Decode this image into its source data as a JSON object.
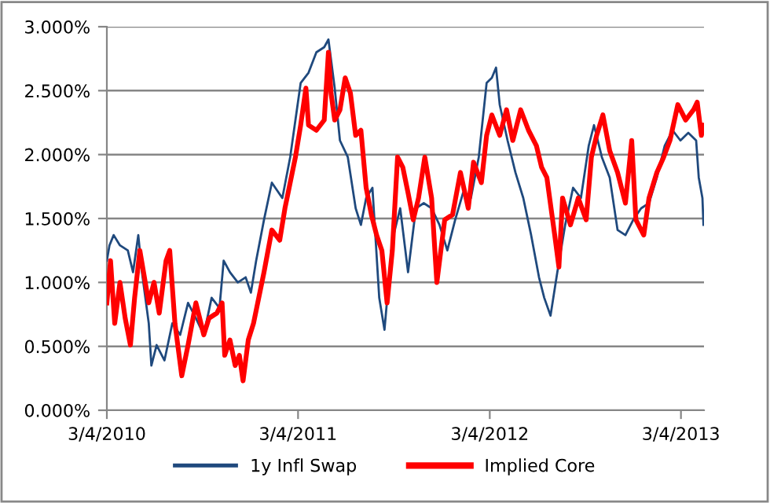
{
  "chart_data": {
    "type": "line",
    "x": [
      "2010-03-04",
      "2010-03-09",
      "2010-03-17",
      "2010-03-29",
      "2010-04-13",
      "2010-04-23",
      "2010-05-03",
      "2010-05-10",
      "2010-05-23",
      "2010-05-28",
      "2010-06-07",
      "2010-06-22",
      "2010-07-07",
      "2010-07-22",
      "2010-08-06",
      "2010-08-21",
      "2010-09-05",
      "2010-09-20",
      "2010-10-05",
      "2010-10-13",
      "2010-10-25",
      "2010-11-09",
      "2010-11-24",
      "2010-12-04",
      "2010-12-14",
      "2010-12-29",
      "2011-01-13",
      "2011-02-02",
      "2011-02-17",
      "2011-02-27",
      "2011-03-09",
      "2011-03-24",
      "2011-04-08",
      "2011-04-23",
      "2011-05-01",
      "2011-05-13",
      "2011-05-23",
      "2011-06-07",
      "2011-06-22",
      "2011-07-02",
      "2011-07-12",
      "2011-07-24",
      "2011-08-06",
      "2011-08-16",
      "2011-08-31",
      "2011-09-15",
      "2011-09-30",
      "2011-10-15",
      "2011-10-30",
      "2011-11-14",
      "2011-11-29",
      "2011-12-14",
      "2011-12-29",
      "2012-01-13",
      "2012-01-28",
      "2012-02-12",
      "2012-02-27",
      "2012-03-08",
      "2012-03-16",
      "2012-03-23",
      "2012-04-07",
      "2012-04-22",
      "2012-05-07",
      "2012-05-22",
      "2012-06-06",
      "2012-06-16",
      "2012-06-28",
      "2012-07-11",
      "2012-07-26",
      "2012-08-10",
      "2012-08-25",
      "2012-09-09",
      "2012-09-19",
      "2012-10-04",
      "2012-10-19",
      "2012-11-03",
      "2012-11-18",
      "2012-12-03",
      "2012-12-18",
      "2013-01-02",
      "2013-01-17",
      "2013-02-01",
      "2013-02-16",
      "2013-03-03",
      "2013-03-18",
      "2013-04-02",
      "2013-04-07",
      "2013-04-14",
      "2013-04-16"
    ],
    "series": [
      {
        "name": "1y Infl Swap",
        "color": "#1f497d",
        "values": [
          1.17,
          1.29,
          1.37,
          1.29,
          1.25,
          1.08,
          1.37,
          1.08,
          0.68,
          0.35,
          0.51,
          0.39,
          0.68,
          0.59,
          0.84,
          0.72,
          0.59,
          0.88,
          0.8,
          1.17,
          1.08,
          1.0,
          1.04,
          0.92,
          1.17,
          1.49,
          1.78,
          1.66,
          1.98,
          2.27,
          2.56,
          2.64,
          2.8,
          2.84,
          2.9,
          2.52,
          2.11,
          1.98,
          1.58,
          1.45,
          1.66,
          1.74,
          0.88,
          0.63,
          1.33,
          1.58,
          1.08,
          1.58,
          1.62,
          1.58,
          1.45,
          1.25,
          1.49,
          1.7,
          1.66,
          1.98,
          2.56,
          2.6,
          2.68,
          2.39,
          2.11,
          1.86,
          1.66,
          1.37,
          1.04,
          0.88,
          0.74,
          1.08,
          1.45,
          1.74,
          1.66,
          2.07,
          2.23,
          1.98,
          1.82,
          1.41,
          1.37,
          1.49,
          1.58,
          1.62,
          1.82,
          2.07,
          2.19,
          2.11,
          2.17,
          2.11,
          1.82,
          1.66,
          1.45
        ]
      },
      {
        "name": "Implied Core",
        "color": "#ff0000",
        "x": [
          "2010-03-04",
          "2010-03-11",
          "2010-03-19",
          "2010-03-29",
          "2010-04-08",
          "2010-04-18",
          "2010-04-26",
          "2010-05-06",
          "2010-05-13",
          "2010-05-23",
          "2010-06-02",
          "2010-06-12",
          "2010-06-25",
          "2010-07-02",
          "2010-07-12",
          "2010-07-25",
          "2010-08-06",
          "2010-08-21",
          "2010-09-05",
          "2010-09-15",
          "2010-09-30",
          "2010-10-10",
          "2010-10-15",
          "2010-10-25",
          "2010-11-04",
          "2010-11-12",
          "2010-11-19",
          "2010-11-29",
          "2010-12-09",
          "2010-12-19",
          "2010-12-29",
          "2011-01-13",
          "2011-01-28",
          "2011-02-07",
          "2011-02-17",
          "2011-02-27",
          "2011-03-09",
          "2011-03-19",
          "2011-03-24",
          "2011-04-08",
          "2011-04-23",
          "2011-05-01",
          "2011-05-06",
          "2011-05-13",
          "2011-05-23",
          "2011-06-02",
          "2011-06-12",
          "2011-06-22",
          "2011-07-02",
          "2011-07-12",
          "2011-07-22",
          "2011-08-01",
          "2011-08-11",
          "2011-08-21",
          "2011-08-31",
          "2011-09-10",
          "2011-09-20",
          "2011-09-30",
          "2011-10-10",
          "2011-10-20",
          "2011-11-01",
          "2011-11-14",
          "2011-11-24",
          "2011-12-09",
          "2011-12-24",
          "2012-01-08",
          "2012-01-23",
          "2012-02-02",
          "2012-02-17",
          "2012-02-27",
          "2012-03-08",
          "2012-03-23",
          "2012-04-05",
          "2012-04-17",
          "2012-05-02",
          "2012-05-17",
          "2012-06-01",
          "2012-06-11",
          "2012-06-21",
          "2012-07-06",
          "2012-07-14",
          "2012-07-21",
          "2012-08-05",
          "2012-08-20",
          "2012-09-04",
          "2012-09-14",
          "2012-09-24",
          "2012-10-06",
          "2012-10-19",
          "2012-11-03",
          "2012-11-18",
          "2012-11-30",
          "2012-12-08",
          "2012-12-23",
          "2013-01-02",
          "2013-01-17",
          "2013-01-30",
          "2013-02-11",
          "2013-02-26",
          "2013-03-13",
          "2013-03-28",
          "2013-04-04",
          "2013-04-12",
          "2013-04-16"
        ],
        "values": [
          0.84,
          1.17,
          0.68,
          1.0,
          0.72,
          0.51,
          0.88,
          1.25,
          1.08,
          0.84,
          1.0,
          0.76,
          1.17,
          1.25,
          0.68,
          0.27,
          0.51,
          0.84,
          0.59,
          0.72,
          0.76,
          0.84,
          0.43,
          0.55,
          0.35,
          0.43,
          0.23,
          0.55,
          0.68,
          0.88,
          1.08,
          1.41,
          1.33,
          1.58,
          1.78,
          1.98,
          2.23,
          2.52,
          2.23,
          2.19,
          2.27,
          2.8,
          2.48,
          2.27,
          2.35,
          2.6,
          2.48,
          2.15,
          2.19,
          1.74,
          1.53,
          1.37,
          1.25,
          0.84,
          1.25,
          1.98,
          1.9,
          1.7,
          1.49,
          1.66,
          1.98,
          1.66,
          1.0,
          1.49,
          1.53,
          1.86,
          1.58,
          1.94,
          1.78,
          2.15,
          2.31,
          2.15,
          2.35,
          2.11,
          2.35,
          2.19,
          2.07,
          1.9,
          1.82,
          1.37,
          1.12,
          1.66,
          1.45,
          1.66,
          1.49,
          1.98,
          2.15,
          2.31,
          2.03,
          1.86,
          1.62,
          2.11,
          1.49,
          1.37,
          1.66,
          1.86,
          1.98,
          2.11,
          2.39,
          2.27,
          2.35,
          2.41,
          2.15,
          2.23
        ]
      }
    ],
    "xlim": [
      "2010-03-04",
      "2013-04-17"
    ],
    "xticks": [
      {
        "value": "2010-03-04",
        "label": "3/4/2010"
      },
      {
        "value": "2011-03-04",
        "label": "3/4/2011"
      },
      {
        "value": "2012-03-04",
        "label": "3/4/2012"
      },
      {
        "value": "2013-03-04",
        "label": "3/4/2013"
      }
    ],
    "ylim": [
      0,
      3
    ],
    "yticks": [
      {
        "value": 0,
        "label": "0.000%"
      },
      {
        "value": 0.5,
        "label": "0.500%"
      },
      {
        "value": 1,
        "label": "1.000%"
      },
      {
        "value": 1.5,
        "label": "1.500%"
      },
      {
        "value": 2,
        "label": "2.000%"
      },
      {
        "value": 2.5,
        "label": "2.500%"
      },
      {
        "value": 3,
        "label": "3.000%"
      }
    ],
    "grid": "y",
    "legend": "bottom"
  }
}
